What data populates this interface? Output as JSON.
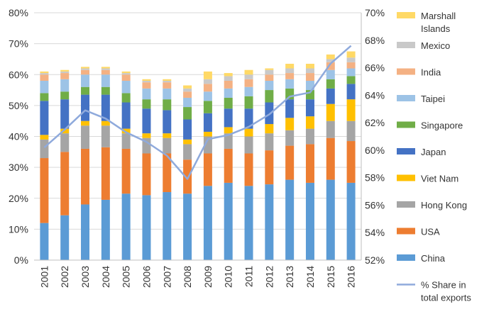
{
  "chart_data": {
    "type": "bar",
    "stacked": true,
    "categories": [
      "2001",
      "2002",
      "2003",
      "2004",
      "2005",
      "2006",
      "2007",
      "2008",
      "2009",
      "2010",
      "2011",
      "2012",
      "2013",
      "2014",
      "2015",
      "2016"
    ],
    "series": [
      {
        "name": "China",
        "color": "#5b9bd5",
        "values": [
          12.0,
          14.5,
          18.0,
          19.5,
          21.5,
          21.0,
          22.0,
          21.5,
          24.0,
          25.0,
          24.0,
          24.5,
          26.0,
          25.0,
          26.0,
          25.0
        ]
      },
      {
        "name": "USA",
        "color": "#ed7d31",
        "values": [
          21.0,
          20.5,
          18.0,
          17.0,
          14.5,
          13.5,
          12.5,
          11.0,
          10.5,
          11.0,
          10.5,
          11.0,
          11.0,
          12.5,
          13.5,
          13.5
        ]
      },
      {
        "name": "Hong Kong",
        "color": "#a5a5a5",
        "values": [
          6.0,
          6.0,
          7.5,
          7.0,
          5.0,
          5.0,
          5.0,
          5.0,
          5.5,
          5.0,
          5.5,
          5.5,
          5.0,
          5.0,
          5.5,
          6.5
        ]
      },
      {
        "name": "Viet Nam",
        "color": "#ffc000",
        "values": [
          1.5,
          1.5,
          1.5,
          1.5,
          1.5,
          1.5,
          1.5,
          1.5,
          1.5,
          2.0,
          2.5,
          3.0,
          4.0,
          4.0,
          5.5,
          7.0
        ]
      },
      {
        "name": "Japan",
        "color": "#4472c4",
        "values": [
          11.0,
          9.5,
          8.5,
          8.5,
          8.5,
          8.0,
          7.5,
          6.5,
          6.0,
          6.0,
          6.5,
          7.0,
          6.0,
          5.5,
          5.0,
          5.0
        ]
      },
      {
        "name": "Singapore",
        "color": "#70ad47",
        "values": [
          2.5,
          2.5,
          2.5,
          2.5,
          3.0,
          3.0,
          3.5,
          4.0,
          4.0,
          3.5,
          4.0,
          4.0,
          3.5,
          3.0,
          3.0,
          2.5
        ]
      },
      {
        "name": "Taipei",
        "color": "#9dc3e6",
        "values": [
          4.0,
          4.0,
          4.0,
          4.0,
          4.0,
          3.5,
          3.5,
          3.0,
          3.0,
          3.0,
          3.0,
          3.0,
          3.0,
          3.0,
          3.0,
          2.5
        ]
      },
      {
        "name": "India",
        "color": "#f4b183",
        "values": [
          2.0,
          2.0,
          1.5,
          1.5,
          2.0,
          2.0,
          2.0,
          2.0,
          2.5,
          2.5,
          2.5,
          2.0,
          2.0,
          2.5,
          2.5,
          2.0
        ]
      },
      {
        "name": "Mexico",
        "color": "#c9c9c9",
        "values": [
          0.5,
          0.5,
          0.5,
          0.5,
          0.5,
          0.5,
          0.5,
          1.0,
          1.5,
          1.5,
          1.5,
          1.5,
          1.5,
          1.5,
          1.0,
          1.5
        ]
      },
      {
        "name": "Marshall Islands",
        "color": "#ffd966",
        "values": [
          0.5,
          0.5,
          0.5,
          0.5,
          0.5,
          0.5,
          0.5,
          1.0,
          2.5,
          1.0,
          1.5,
          0.5,
          1.5,
          1.5,
          1.5,
          2.0
        ]
      }
    ],
    "line_series": {
      "name": "% Share in total exports",
      "color": "#8faadc",
      "axis": "right",
      "values": [
        60.2,
        61.5,
        62.9,
        62.3,
        61.3,
        60.6,
        59.6,
        57.9,
        60.8,
        61.1,
        61.7,
        62.6,
        63.9,
        64.2,
        66.3,
        67.6
      ]
    },
    "y_left": {
      "ylim": [
        0,
        80
      ],
      "ticks": [
        0,
        10,
        20,
        30,
        40,
        50,
        60,
        70,
        80
      ],
      "tick_labels": [
        "0%",
        "10%",
        "20%",
        "30%",
        "40%",
        "50%",
        "60%",
        "70%",
        "80%"
      ]
    },
    "y_right": {
      "ylim": [
        52,
        70
      ],
      "ticks": [
        52,
        54,
        56,
        58,
        60,
        62,
        64,
        66,
        68,
        70
      ],
      "tick_labels": [
        "52%",
        "54%",
        "56%",
        "58%",
        "60%",
        "62%",
        "64%",
        "66%",
        "68%",
        "70%"
      ]
    },
    "grid": true,
    "legend_position": "right",
    "legend": [
      {
        "label_lines": [
          "Marshall",
          "Islands"
        ],
        "color": "#ffd966",
        "kind": "box"
      },
      {
        "label_lines": [
          "Mexico"
        ],
        "color": "#c9c9c9",
        "kind": "box"
      },
      {
        "label_lines": [
          "India"
        ],
        "color": "#f4b183",
        "kind": "box"
      },
      {
        "label_lines": [
          "Taipei"
        ],
        "color": "#9dc3e6",
        "kind": "box"
      },
      {
        "label_lines": [
          "Singapore"
        ],
        "color": "#70ad47",
        "kind": "box"
      },
      {
        "label_lines": [
          "Japan"
        ],
        "color": "#4472c4",
        "kind": "box"
      },
      {
        "label_lines": [
          "Viet Nam"
        ],
        "color": "#ffc000",
        "kind": "box"
      },
      {
        "label_lines": [
          "Hong Kong"
        ],
        "color": "#a5a5a5",
        "kind": "box"
      },
      {
        "label_lines": [
          "USA"
        ],
        "color": "#ed7d31",
        "kind": "box"
      },
      {
        "label_lines": [
          "China"
        ],
        "color": "#5b9bd5",
        "kind": "box"
      },
      {
        "label_lines": [
          "% Share in",
          "total exports"
        ],
        "color": "#8faadc",
        "kind": "line"
      }
    ]
  }
}
